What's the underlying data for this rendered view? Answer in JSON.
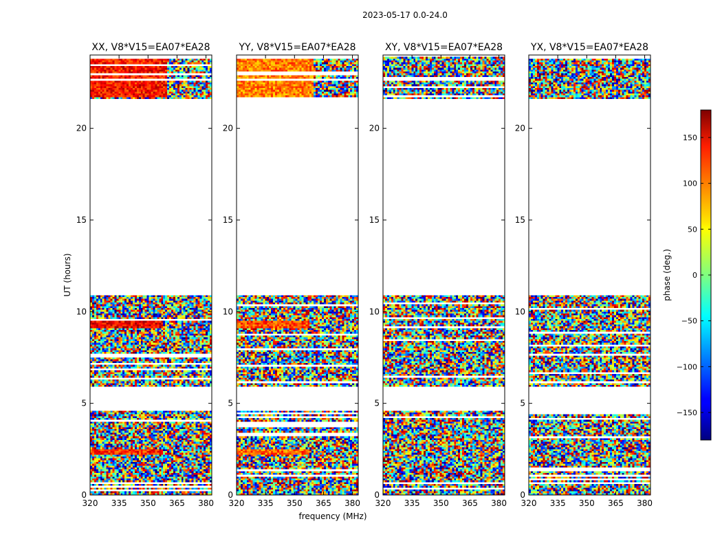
{
  "figure": {
    "suptitle": "2023-05-17 0.0-24.0",
    "ylabel": "UT (hours)",
    "xlabel": "frequency (MHz)"
  },
  "chart_data": {
    "type": "heatmap",
    "description": "Visibility phase waterfall plots, one per correlation product, baseline V8*V15=EA07*EA28",
    "x_axis": {
      "label": "frequency (MHz)",
      "range": [
        320,
        383
      ],
      "ticks": [
        320,
        335,
        350,
        365,
        380
      ]
    },
    "y_axis": {
      "label": "UT (hours)",
      "range": [
        0,
        24
      ],
      "ticks": [
        0,
        5,
        10,
        15,
        20
      ]
    },
    "colorbar": {
      "label": "phase (deg.)",
      "range": [
        -180,
        180
      ],
      "ticks": [
        -150,
        -100,
        -50,
        0,
        50,
        100,
        150
      ],
      "colormap": "jet"
    },
    "data_gaps_ut": [
      [
        4.6,
        5.9
      ],
      [
        10.9,
        21.6
      ]
    ],
    "panels": [
      {
        "title": "XX, V8*V15=EA07*EA28",
        "coherent_phase_regions": [
          {
            "ut": [
              21.7,
              24.0
            ],
            "freq": [
              320,
              360
            ],
            "phase_deg": 130
          },
          {
            "ut": [
              9.1,
              9.5
            ],
            "freq": [
              320,
              358
            ],
            "phase_deg": 140
          },
          {
            "ut": [
              2.2,
              2.5
            ],
            "freq": [
              320,
              358
            ],
            "phase_deg": 120
          }
        ]
      },
      {
        "title": "YY, V8*V15=EA07*EA28",
        "coherent_phase_regions": [
          {
            "ut": [
              21.7,
              24.0
            ],
            "freq": [
              320,
              360
            ],
            "phase_deg": 90
          },
          {
            "ut": [
              9.1,
              9.5
            ],
            "freq": [
              320,
              358
            ],
            "phase_deg": 110
          },
          {
            "ut": [
              2.2,
              2.5
            ],
            "freq": [
              320,
              358
            ],
            "phase_deg": 100
          }
        ]
      },
      {
        "title": "XY, V8*V15=EA07*EA28",
        "coherent_phase_regions": []
      },
      {
        "title": "YX, V8*V15=EA07*EA28",
        "coherent_phase_regions": []
      }
    ]
  }
}
